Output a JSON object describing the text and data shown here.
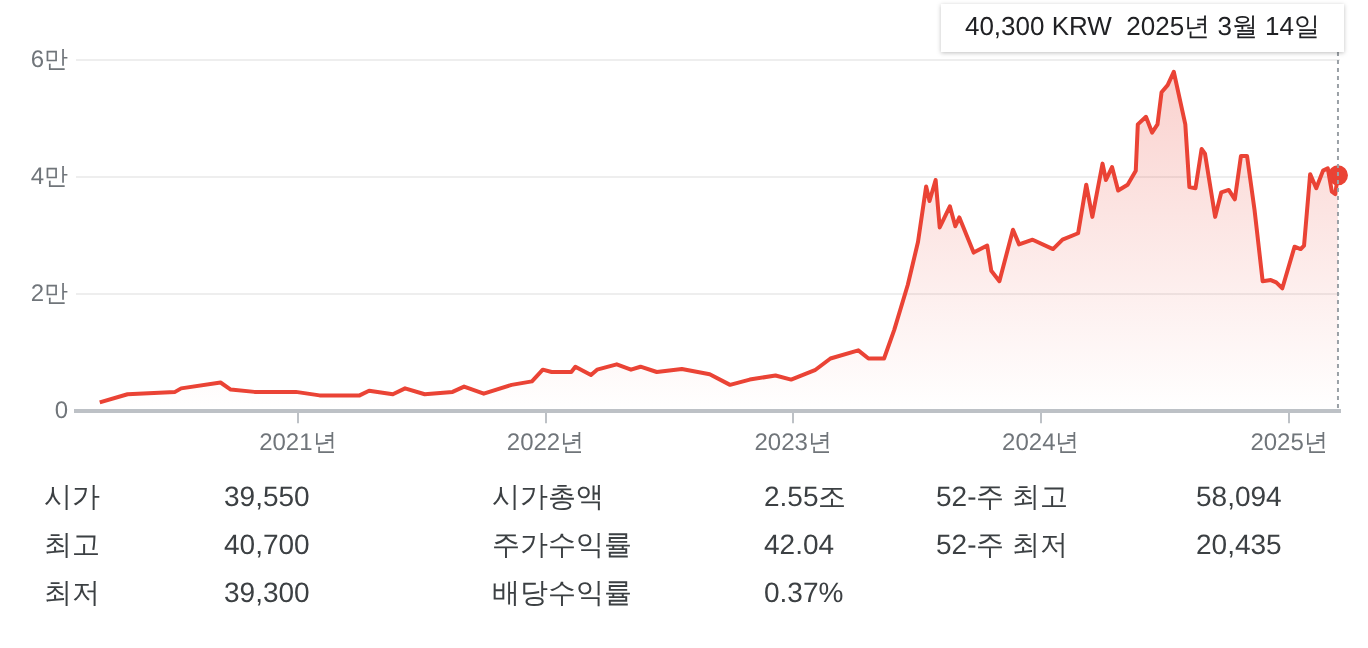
{
  "chart_data": [
    {
      "type": "area",
      "x": [
        "2020-03-15",
        "2020-04-25",
        "2020-07-04",
        "2020-07-13",
        "2020-09-09",
        "2020-09-24",
        "2020-10-29",
        "2020-12-29",
        "2021-02-02",
        "2021-04-02",
        "2021-04-16",
        "2021-05-21",
        "2021-06-08",
        "2021-07-07",
        "2021-08-17",
        "2021-09-03",
        "2021-10-02",
        "2021-11-12",
        "2021-12-12",
        "2021-12-28",
        "2022-01-10",
        "2022-02-08",
        "2022-02-14",
        "2022-03-09",
        "2022-03-18",
        "2022-04-16",
        "2022-05-07",
        "2022-05-21",
        "2022-06-14",
        "2022-07-21",
        "2022-08-31",
        "2022-09-30",
        "2022-10-29",
        "2022-12-06",
        "2022-12-29",
        "2023-02-02",
        "2023-02-25",
        "2023-04-07",
        "2023-04-22",
        "2023-05-15",
        "2023-05-30",
        "2023-06-19",
        "2023-07-04",
        "2023-07-16",
        "2023-07-21",
        "2023-07-30",
        "2023-08-05",
        "2023-08-20",
        "2023-08-28",
        "2023-09-03",
        "2023-09-24",
        "2023-10-14",
        "2023-10-20",
        "2023-11-01",
        "2023-11-21",
        "2023-11-30",
        "2023-12-20",
        "2024-01-19",
        "2024-02-02",
        "2024-02-25",
        "2024-03-08",
        "2024-03-17",
        "2024-04-01",
        "2024-04-06",
        "2024-04-15",
        "2024-04-24",
        "2024-05-08",
        "2024-05-20",
        "2024-05-23",
        "2024-06-04",
        "2024-06-13",
        "2024-06-21",
        "2024-06-27",
        "2024-07-06",
        "2024-07-15",
        "2024-08-01",
        "2024-08-07",
        "2024-08-16",
        "2024-08-25",
        "2024-08-30",
        "2024-09-14",
        "2024-09-23",
        "2024-10-04",
        "2024-10-13",
        "2024-10-22",
        "2024-10-31",
        "2024-11-11",
        "2024-11-14",
        "2024-11-23",
        "2024-12-05",
        "2024-12-13",
        "2024-12-22",
        "2025-01-09",
        "2025-01-18",
        "2025-01-23",
        "2025-02-01",
        "2025-02-10",
        "2025-02-20",
        "2025-02-27",
        "2025-03-05",
        "2025-03-10",
        "2025-03-14"
      ],
      "series": [
        {
          "color": "#ea4335",
          "values": [
            0.15,
            0.29,
            0.33,
            0.39,
            0.49,
            0.37,
            0.33,
            0.33,
            0.27,
            0.27,
            0.35,
            0.29,
            0.39,
            0.29,
            0.33,
            0.42,
            0.3,
            0.45,
            0.51,
            0.71,
            0.67,
            0.67,
            0.76,
            0.62,
            0.71,
            0.8,
            0.71,
            0.76,
            0.67,
            0.72,
            0.63,
            0.45,
            0.54,
            0.61,
            0.54,
            0.7,
            0.9,
            1.04,
            0.9,
            0.9,
            1.39,
            2.16,
            2.89,
            3.84,
            3.59,
            3.95,
            3.14,
            3.5,
            3.16,
            3.31,
            2.71,
            2.83,
            2.4,
            2.22,
            3.1,
            2.85,
            2.93,
            2.77,
            2.93,
            3.04,
            3.87,
            3.32,
            4.23,
            3.95,
            4.17,
            3.77,
            3.87,
            4.11,
            4.9,
            5.03,
            4.76,
            4.9,
            5.45,
            5.57,
            5.8,
            4.9,
            3.83,
            3.81,
            4.48,
            4.4,
            3.32,
            3.74,
            3.78,
            3.62,
            4.36,
            4.36,
            3.44,
            3.14,
            2.22,
            2.24,
            2.2,
            2.1,
            2.81,
            2.77,
            2.83,
            4.05,
            3.81,
            4.11,
            4.15,
            3.75,
            3.71,
            4.03
          ]
        }
      ],
      "xlim": [
        "2020-02-09",
        "2025-03-17"
      ],
      "xticks": [
        {
          "value": "2021-01-01",
          "label": "2021년"
        },
        {
          "value": "2022-01-01",
          "label": "2022년"
        },
        {
          "value": "2023-01-01",
          "label": "2023년"
        },
        {
          "value": "2024-01-01",
          "label": "2024년"
        },
        {
          "value": "2025-01-01",
          "label": "2025년"
        }
      ],
      "ylim": [
        0,
        6
      ],
      "yticks": [
        0,
        {
          "value": 2,
          "label": "2만"
        },
        {
          "value": 4,
          "label": "4만"
        },
        {
          "value": 6,
          "label": "6만"
        }
      ],
      "grid": "y",
      "marker": "none",
      "ref_lines": [
        {
          "axis": "x",
          "value": "2025-03-14",
          "color": "#9aa0a6",
          "line_style": "dotted"
        }
      ],
      "annotations": [
        "40,300 KRW  2025년 3월 14일"
      ]
    },
    {
      "type": "other",
      "annotations": [
        "시가",
        "39,550",
        "시가총액",
        "2.55조",
        "52-주 최고",
        "58,094",
        "최고",
        "40,700",
        "주가수익률",
        "42.04",
        "52-주 최저",
        "20,435",
        "최저",
        "39,300",
        "배당수익률",
        "0.37%"
      ]
    }
  ]
}
